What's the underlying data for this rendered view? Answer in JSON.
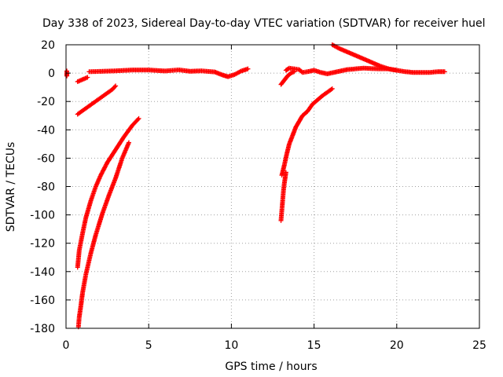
{
  "chart_data": {
    "type": "scatter",
    "title": "Day 338 of 2023, Sidereal Day-to-day VTEC variation (SDTVAR) for receiver huel",
    "xlabel": "GPS time / hours",
    "ylabel": "SDTVAR / TECUs",
    "xlim": [
      0,
      25
    ],
    "ylim": [
      -180,
      20
    ],
    "x_ticks": [
      0,
      5,
      10,
      15,
      20,
      25
    ],
    "y_ticks": [
      20,
      0,
      -20,
      -40,
      -60,
      -80,
      -100,
      -120,
      -140,
      -160,
      -180
    ],
    "grid": true,
    "marker": "plus",
    "color": "#ff0000",
    "series": [
      {
        "x": [
          0.05,
          0.05,
          0.05,
          0.05
        ],
        "y": [
          1.5,
          0,
          -1,
          -2
        ]
      },
      {
        "x": [
          0.7,
          0.9,
          1.1,
          1.3
        ],
        "y": [
          -6,
          -5,
          -4,
          -3
        ]
      },
      {
        "x": [
          0.7,
          1.0,
          1.3,
          1.6,
          1.9,
          2.2,
          2.5,
          2.8,
          3.0
        ],
        "y": [
          -29,
          -26.5,
          -24,
          -21.5,
          -19,
          -16.5,
          -14,
          -11.5,
          -9
        ]
      },
      {
        "x": [
          1.4,
          2,
          3,
          4,
          5,
          6,
          6.8,
          7.5,
          8.2,
          9,
          9.5,
          9.8,
          10.2,
          10.6,
          11.0
        ],
        "y": [
          1,
          1.2,
          1.6,
          2.2,
          2.2,
          1.5,
          2.3,
          1.3,
          1.6,
          0.8,
          -1.5,
          -2.5,
          -1,
          1.5,
          3
        ]
      },
      {
        "x": [
          0.7,
          0.8,
          1.0,
          1.2,
          1.5,
          1.8,
          2.1,
          2.5,
          3.0,
          3.5,
          4.0,
          4.4
        ],
        "y": [
          -137,
          -125,
          -113,
          -102,
          -90,
          -80,
          -72,
          -63,
          -54,
          -45,
          -37,
          -32
        ]
      },
      {
        "x": [
          0.75,
          0.8,
          0.9,
          1.0,
          1.2,
          1.5,
          1.8,
          2.2,
          2.6,
          3.0,
          3.4,
          3.8
        ],
        "y": [
          -179,
          -172,
          -164,
          -155,
          -142,
          -127,
          -114,
          -99,
          -86,
          -74,
          -60,
          -49
        ]
      },
      {
        "x": [
          13.0,
          13.05,
          13.1,
          13.15,
          13.2,
          13.25,
          13.3
        ],
        "y": [
          -104,
          -97,
          -90,
          -83,
          -78,
          -74,
          -70
        ]
      },
      {
        "x": [
          13.05,
          13.2,
          13.35,
          13.5,
          13.7,
          13.9,
          14.1,
          14.3,
          14.6,
          14.9,
          15.2,
          15.5,
          15.8,
          16.1
        ],
        "y": [
          -72,
          -65,
          -57,
          -50,
          -44,
          -38,
          -34,
          -30,
          -27,
          -22,
          -19,
          -16,
          -13.5,
          -11
        ]
      },
      {
        "x": [
          13.0,
          13.2,
          13.4,
          13.6,
          13.8
        ],
        "y": [
          -8,
          -5,
          -2,
          0,
          1
        ]
      },
      {
        "x": [
          13.3,
          13.5,
          13.8,
          14.1,
          14.3,
          14.6,
          15.0,
          15.4,
          15.8,
          16.2,
          16.6,
          17.0,
          17.5,
          18,
          18.5,
          19,
          19.5,
          20,
          20.5,
          21,
          21.5,
          22,
          22.5,
          22.9
        ],
        "y": [
          2,
          3.5,
          3,
          2.5,
          0.5,
          1,
          2,
          0.5,
          -0.5,
          0.5,
          1.5,
          2.5,
          3,
          3.5,
          3.2,
          3,
          3,
          2,
          1,
          0.5,
          0.5,
          0.5,
          1,
          1
        ]
      },
      {
        "x": [
          16.1,
          16.5,
          17,
          17.5,
          18,
          18.5,
          19,
          19.5,
          20
        ],
        "y": [
          20,
          17.5,
          15,
          12.5,
          10,
          7.5,
          5,
          3,
          2
        ]
      }
    ]
  }
}
